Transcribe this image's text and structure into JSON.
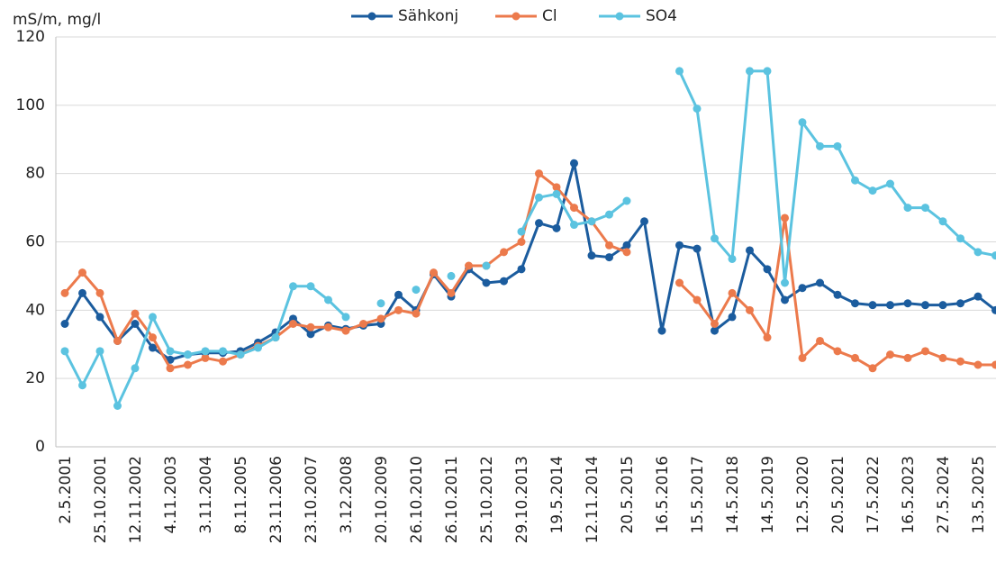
{
  "chart_data": {
    "type": "line",
    "y_label": "mS/m, mg/l",
    "categories": [
      "2.5.2001",
      null,
      "25.10.2001",
      null,
      "12.11.2002",
      null,
      "4.11.2003",
      null,
      "3.11.2004",
      null,
      "8.11.2005",
      null,
      "23.11.2006",
      null,
      "23.10.2007",
      null,
      "3.12.2008",
      null,
      "20.10.2009",
      null,
      "26.10.2010",
      null,
      "26.10.2011",
      null,
      "25.10.2012",
      null,
      "29.10.2013",
      null,
      "19.5.2014",
      null,
      "12.11.2014",
      null,
      "20.5.2015",
      null,
      "16.5.2016",
      null,
      "15.5.2017",
      null,
      "14.5.2018",
      null,
      "14.5.2019",
      null,
      "12.5.2020",
      null,
      "20.5.2021",
      null,
      "17.5.2022",
      null,
      "16.5.2023",
      null,
      "27.5.2024",
      null,
      "13.5.2025",
      null
    ],
    "series": [
      {
        "name": "Sähkonj",
        "color": "#1b5c9e",
        "values": [
          36,
          45,
          38,
          31,
          36,
          29,
          25.5,
          27,
          27.5,
          27.5,
          28,
          30.5,
          33.5,
          37.5,
          33,
          35.5,
          34.5,
          35.5,
          36,
          44.5,
          40,
          50.5,
          44,
          52,
          48,
          48.5,
          52,
          65.5,
          64,
          83,
          56,
          55.5,
          59,
          66,
          34,
          59,
          58,
          34,
          38,
          57.5,
          52,
          43,
          46.5,
          48,
          44.5,
          42,
          41.5,
          41.5,
          42,
          41.5,
          41.5,
          42,
          44,
          40
        ]
      },
      {
        "name": "Cl",
        "color": "#ec7a4c",
        "values": [
          45,
          51,
          45,
          31,
          39,
          32,
          23,
          24,
          26,
          25,
          27,
          29.5,
          32,
          36,
          35,
          35,
          34,
          36,
          37.5,
          40,
          39,
          51,
          45,
          53,
          53,
          57,
          60,
          80,
          76,
          70,
          66,
          59,
          57,
          null,
          null,
          48,
          43,
          36,
          45,
          40,
          32,
          67,
          26,
          31,
          28,
          26,
          23,
          27,
          26,
          28,
          26,
          25,
          24,
          24
        ]
      },
      {
        "name": "SO4",
        "color": "#5bc3e0",
        "values": [
          28,
          18,
          28,
          12,
          23,
          38,
          28,
          27,
          28,
          28,
          27,
          29,
          32,
          47,
          47,
          43,
          38,
          null,
          42,
          null,
          46,
          null,
          50,
          null,
          53,
          null,
          63,
          73,
          74,
          65,
          66,
          68,
          72,
          null,
          null,
          110,
          99,
          61,
          55,
          110,
          110,
          48,
          95,
          88,
          88,
          78,
          75,
          77,
          70,
          70,
          66,
          61,
          57,
          56
        ]
      }
    ],
    "ylim": [
      0,
      120
    ],
    "yticks": [
      0,
      20,
      40,
      60,
      80,
      100,
      120
    ],
    "grid": true,
    "legend": "top"
  }
}
